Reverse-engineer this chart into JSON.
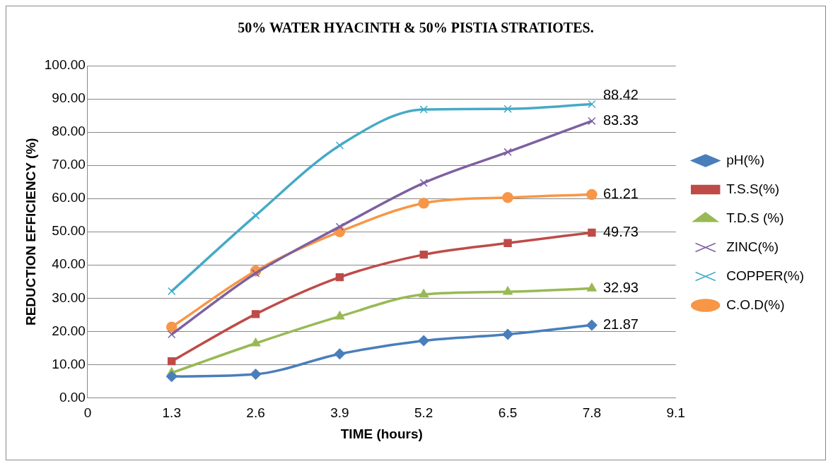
{
  "chart_data": {
    "type": "line",
    "title": "50% WATER HYACINTH & 50% PISTIA STRATIOTES.",
    "xlabel": "TIME (hours)",
    "ylabel": "REDUCTION EFFICIENCY (%)",
    "x": [
      1.3,
      2.6,
      3.9,
      5.2,
      6.5,
      7.8
    ],
    "xlim": [
      0,
      9.1
    ],
    "xticks": [
      0,
      1.3,
      2.6,
      3.9,
      5.2,
      6.5,
      7.8,
      9.1
    ],
    "ylim": [
      0,
      100
    ],
    "yticks": [
      {
        "value": 0,
        "label": "0.00"
      },
      {
        "value": 10,
        "label": "10.00"
      },
      {
        "value": 20,
        "label": "20.00"
      },
      {
        "value": 30,
        "label": "30.00"
      },
      {
        "value": 40,
        "label": "40.00"
      },
      {
        "value": 50,
        "label": "50.00"
      },
      {
        "value": 60,
        "label": "60.00"
      },
      {
        "value": 70,
        "label": "70.00"
      },
      {
        "value": 80,
        "label": "80.00"
      },
      {
        "value": 90,
        "label": "90.00"
      },
      {
        "value": 100,
        "label": "100.00"
      }
    ],
    "grid": "y",
    "legend": "right",
    "series": [
      {
        "name": "pH(%)",
        "color": "#4a7ebb",
        "marker": "diamond",
        "values": [
          6.4,
          7.1,
          13.2,
          17.2,
          19.1,
          21.87
        ],
        "value_labels": [
          null,
          null,
          null,
          null,
          null,
          "21.87"
        ]
      },
      {
        "name": "T.S.S(%)",
        "color": "#be4b48",
        "marker": "square",
        "values": [
          11.0,
          25.2,
          36.3,
          43.1,
          46.6,
          49.73
        ],
        "value_labels": [
          null,
          null,
          null,
          null,
          null,
          "49.73"
        ]
      },
      {
        "name": "T.D.S (%)",
        "color": "#98b954",
        "marker": "triangle",
        "values": [
          7.5,
          16.4,
          24.5,
          31.1,
          31.9,
          32.93
        ],
        "value_labels": [
          null,
          null,
          null,
          null,
          null,
          "32.93"
        ]
      },
      {
        "name": "ZINC(%)",
        "color": "#7d60a0",
        "marker": "cross",
        "values": [
          19.1,
          37.5,
          51.5,
          64.7,
          74.0,
          83.33
        ],
        "value_labels": [
          null,
          null,
          null,
          null,
          null,
          "83.33"
        ]
      },
      {
        "name": "COPPER(%)",
        "color": "#46aac5",
        "marker": "cross",
        "values": [
          32.1,
          54.9,
          76.0,
          86.8,
          87.0,
          88.42
        ],
        "value_labels": [
          null,
          null,
          null,
          null,
          null,
          "88.42"
        ]
      },
      {
        "name": "C.O.D(%)",
        "color": "#f79646",
        "marker": "circle",
        "values": [
          21.3,
          38.2,
          50.0,
          58.6,
          60.3,
          61.21
        ],
        "value_labels": [
          null,
          null,
          null,
          null,
          null,
          "61.21"
        ]
      }
    ]
  }
}
